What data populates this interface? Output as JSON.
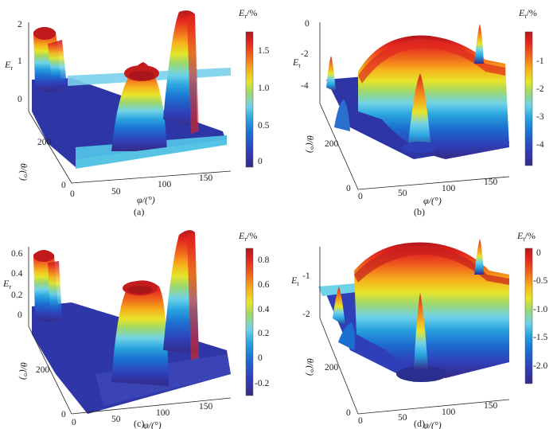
{
  "chart_data": [
    {
      "type": "surface",
      "panel": "(a)",
      "zlabel": "E_r",
      "colorbar_title": "E_r/%",
      "z_ticks": [
        "0",
        "1",
        "2"
      ],
      "theta_ticks": [
        "0",
        "200"
      ],
      "theta_label": "θ/(°)",
      "phi_ticks": [
        "0",
        "50",
        "100",
        "150"
      ],
      "phi_label": "φ/(°)",
      "colorbar_ticks": [
        "1.5",
        "1.0",
        "0.5",
        "0"
      ],
      "colorbar_range": [
        -0.1,
        1.85
      ]
    },
    {
      "type": "surface",
      "panel": "(b)",
      "zlabel": "E_t",
      "colorbar_title": "E_t/%",
      "z_ticks": [
        "0",
        "-2",
        "-4"
      ],
      "theta_ticks": [
        "0",
        "200"
      ],
      "theta_label": "θ/(°)",
      "phi_ticks": [
        "0",
        "50",
        "100",
        "150"
      ],
      "phi_label": "φ/(°)",
      "colorbar_ticks": [
        "-1",
        "-2",
        "-3",
        "-4"
      ],
      "colorbar_range": [
        -4.9,
        -0.3
      ]
    },
    {
      "type": "surface",
      "panel": "(c)",
      "zlabel": "E_r",
      "colorbar_title": "E_r/%",
      "z_ticks": [
        "0.6",
        "0.4",
        "0.2",
        "0"
      ],
      "theta_ticks": [
        "0",
        "200"
      ],
      "theta_label": "θ/(°)",
      "phi_ticks": [
        "0",
        "50",
        "100",
        "150"
      ],
      "phi_label": "φ/(°)",
      "colorbar_ticks": [
        "0.8",
        "0.6",
        "0.4",
        "0.2",
        "0",
        "-0.2"
      ],
      "colorbar_range": [
        -0.28,
        0.97
      ]
    },
    {
      "type": "surface",
      "panel": "(d)",
      "zlabel": "E_t",
      "colorbar_title": "E_t/%",
      "z_ticks": [
        "-1",
        "-2"
      ],
      "theta_ticks": [
        "0",
        "200"
      ],
      "theta_label": "θ/(°)",
      "phi_ticks": [
        "0",
        "50",
        "100",
        "150"
      ],
      "phi_label": "φ/(°)",
      "colorbar_ticks": [
        "0",
        "-0.5",
        "-1.0",
        "-1.5",
        "-2.0"
      ],
      "colorbar_range": [
        -2.2,
        0.15
      ]
    }
  ]
}
